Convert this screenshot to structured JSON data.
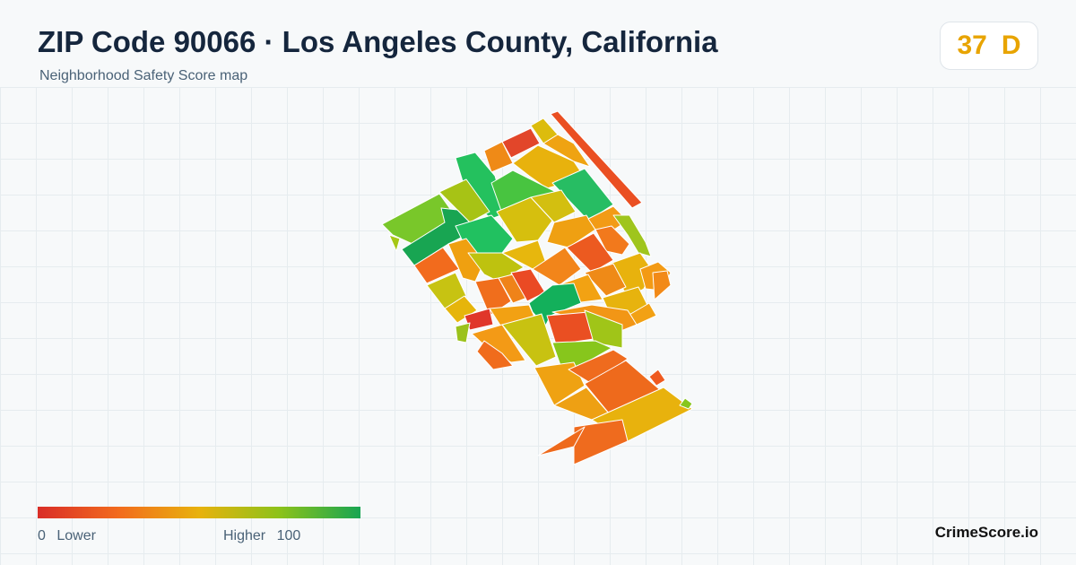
{
  "header": {
    "title": "ZIP Code 90066 · Los Angeles County, California",
    "subtitle": "Neighborhood Safety Score map"
  },
  "score": {
    "value": "37",
    "grade": "D",
    "color": "#e8a400"
  },
  "legend": {
    "low_value": "0",
    "low_label": "Lower",
    "high_label": "Higher",
    "high_value": "100",
    "gradient": [
      "#d92d27",
      "#f26b1d",
      "#e8b20d",
      "#8cc21a",
      "#18a552"
    ]
  },
  "brand": "CrimeScore.io",
  "map": {
    "border_color": "#ffffff"
  }
}
